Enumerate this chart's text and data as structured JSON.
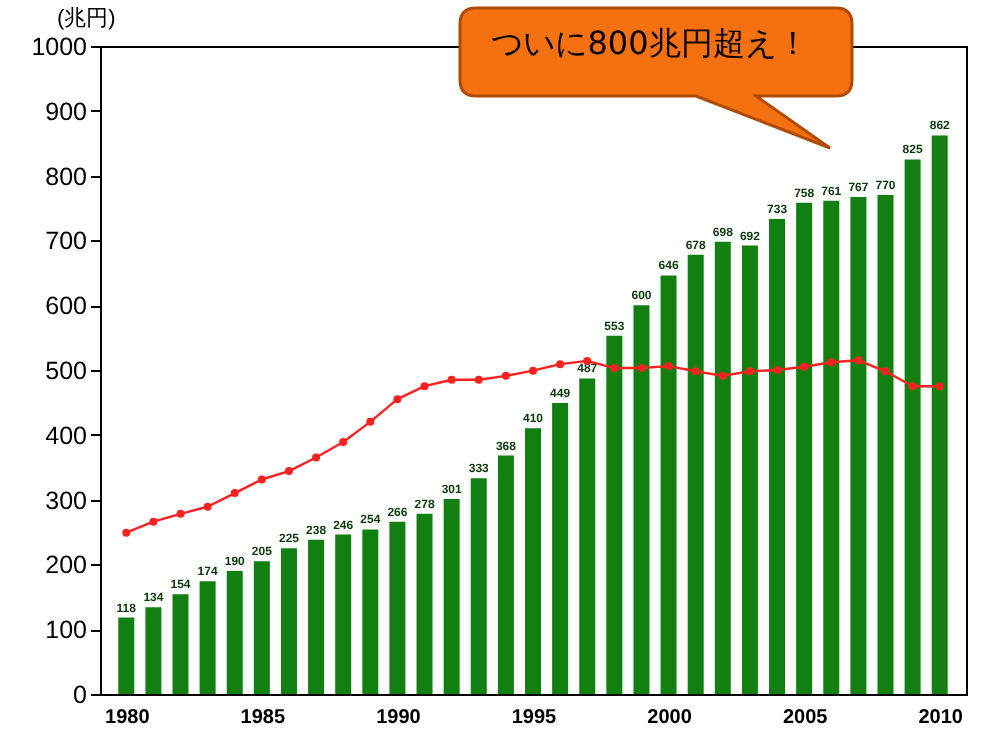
{
  "chart_data": {
    "type": "bar",
    "ylabel": "(兆円)",
    "annotations": [
      "ついに800兆円超え！"
    ],
    "x": [
      1980,
      1981,
      1982,
      1983,
      1984,
      1985,
      1986,
      1987,
      1988,
      1989,
      1990,
      1991,
      1992,
      1993,
      1994,
      1995,
      1996,
      1997,
      1998,
      1999,
      2000,
      2001,
      2002,
      2003,
      2004,
      2005,
      2006,
      2007,
      2008,
      2009,
      2010
    ],
    "series": [
      {
        "color": "#118011",
        "values": [
          118,
          134,
          154,
          174,
          190,
          205,
          225,
          238,
          246,
          254,
          266,
          278,
          301,
          333,
          368,
          410,
          449,
          487,
          553,
          600,
          646,
          678,
          698,
          692,
          733,
          758,
          761,
          767,
          770,
          825,
          862
        ],
        "value_labels": [
          "118",
          "134",
          "154",
          "174",
          "190",
          "205",
          "225",
          "238",
          "246",
          "254",
          "266",
          "278",
          "301",
          "333",
          "368",
          "410",
          "449",
          "487",
          "553",
          "600",
          "646",
          "678",
          "698",
          "692",
          "733",
          "758",
          "761",
          "767",
          "770",
          "825",
          "862"
        ]
      },
      {
        "type": "line",
        "color": "#ff2020",
        "values": [
          249,
          266,
          278,
          289,
          310,
          331,
          344,
          365,
          389,
          420,
          455,
          475,
          485,
          485,
          491,
          499,
          509,
          514,
          503,
          503,
          506,
          498,
          491,
          498,
          500,
          505,
          512,
          515,
          498,
          475,
          475
        ]
      }
    ],
    "marker": "circle",
    "line_style": "solid",
    "xlim": [
      1979.4,
      2010.6
    ],
    "xticks": [
      1980,
      1985,
      1990,
      1995,
      2000,
      2005,
      2010
    ],
    "ylim": [
      0,
      1000
    ],
    "yticks": [
      0,
      100,
      200,
      300,
      400,
      500,
      600,
      700,
      800,
      900,
      1000
    ],
    "grid": false
  }
}
